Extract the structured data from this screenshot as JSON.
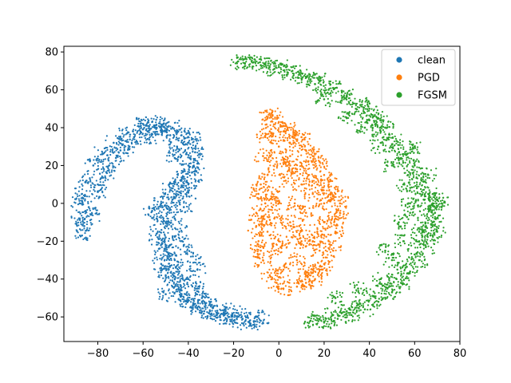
{
  "chart_data": {
    "type": "scatter",
    "title": "",
    "xlabel": "",
    "ylabel": "",
    "xlim": [
      -95,
      80
    ],
    "ylim": [
      -73,
      83
    ],
    "xticks": [
      -80,
      -60,
      -40,
      -20,
      0,
      20,
      40,
      60,
      80
    ],
    "xtick_labels": [
      "−80",
      "−60",
      "−40",
      "−20",
      "0",
      "20",
      "40",
      "60",
      "80"
    ],
    "yticks": [
      -60,
      -40,
      -20,
      0,
      20,
      40,
      60,
      80
    ],
    "ytick_labels": [
      "−60",
      "−40",
      "−20",
      "0",
      "20",
      "40",
      "60",
      "80"
    ],
    "grid": false,
    "legend_position": "upper right",
    "series": [
      {
        "name": "clean",
        "color": "#1f77b4",
        "shape": "crescent",
        "points": [
          [
            -87,
            -17
          ],
          [
            -88,
            -8
          ],
          [
            -88,
            0
          ],
          [
            -87,
            5
          ],
          [
            -85,
            12
          ],
          [
            -82,
            20
          ],
          [
            -78,
            26
          ],
          [
            -73,
            32
          ],
          [
            -67,
            37
          ],
          [
            -61,
            41
          ],
          [
            -56,
            43
          ],
          [
            -51,
            42
          ],
          [
            -47,
            40
          ],
          [
            -43,
            36
          ],
          [
            -40,
            32
          ],
          [
            -37,
            27
          ],
          [
            -36,
            21
          ],
          [
            -37,
            15
          ],
          [
            -40,
            10
          ],
          [
            -44,
            6
          ],
          [
            -47,
            2
          ],
          [
            -49,
            -3
          ],
          [
            -50,
            -10
          ],
          [
            -50,
            -18
          ],
          [
            -49,
            -26
          ],
          [
            -48,
            -33
          ],
          [
            -46,
            -40
          ],
          [
            -43,
            -46
          ],
          [
            -40,
            -51
          ],
          [
            -36,
            -55
          ],
          [
            -31,
            -58
          ],
          [
            -26,
            -60
          ],
          [
            -20,
            -62
          ],
          [
            -13,
            -63
          ],
          [
            -8,
            -62
          ],
          [
            -84,
            -2
          ],
          [
            -80,
            10
          ],
          [
            -75,
            20
          ],
          [
            -70,
            28
          ],
          [
            -64,
            35
          ],
          [
            -58,
            38
          ],
          [
            -52,
            38
          ],
          [
            -48,
            36
          ],
          [
            -45,
            30
          ],
          [
            -41,
            26
          ],
          [
            -40,
            20
          ],
          [
            -42,
            14
          ],
          [
            -45,
            10
          ],
          [
            -48,
            7
          ],
          [
            -52,
            0
          ],
          [
            -54,
            -8
          ],
          [
            -54,
            -16
          ],
          [
            -53,
            -24
          ],
          [
            -52,
            -32
          ],
          [
            -50,
            -38
          ],
          [
            -47,
            -44
          ],
          [
            -43,
            -49
          ],
          [
            -38,
            -54
          ],
          [
            -33,
            -57
          ],
          [
            -27,
            -58
          ],
          [
            -22,
            -60
          ],
          [
            -16,
            -61
          ],
          [
            -34,
            -50
          ],
          [
            -36,
            -45
          ],
          [
            -40,
            -40
          ],
          [
            -36,
            -35
          ],
          [
            -38,
            -28
          ],
          [
            -42,
            -22
          ],
          [
            -44,
            -15
          ],
          [
            -46,
            -8
          ],
          [
            -42,
            -2
          ],
          [
            -46,
            -30
          ],
          [
            -44,
            -36
          ],
          [
            -58,
            34
          ],
          [
            -66,
            30
          ],
          [
            -72,
            24
          ],
          [
            -76,
            16
          ],
          [
            -80,
            6
          ],
          [
            -83,
            -6
          ],
          [
            -86,
            -12
          ],
          [
            -60,
            42
          ],
          [
            -54,
            40
          ],
          [
            -46,
            24
          ],
          [
            -38,
            34
          ],
          [
            -40,
            6
          ],
          [
            -50,
            -48
          ],
          [
            -30,
            -52
          ],
          [
            -24,
            -56
          ],
          [
            -18,
            -58
          ],
          [
            -10,
            -60
          ],
          [
            -56,
            -4
          ],
          [
            -48,
            -22
          ]
        ]
      },
      {
        "name": "PGD",
        "color": "#ff7f0e",
        "shape": "ellipse",
        "points": [
          [
            -10,
            -12
          ],
          [
            -8,
            10
          ],
          [
            -7,
            25
          ],
          [
            -6,
            35
          ],
          [
            -5,
            45
          ],
          [
            -3,
            48
          ],
          [
            0,
            43
          ],
          [
            3,
            38
          ],
          [
            6,
            35
          ],
          [
            8,
            33
          ],
          [
            12,
            28
          ],
          [
            15,
            25
          ],
          [
            18,
            22
          ],
          [
            20,
            15
          ],
          [
            22,
            10
          ],
          [
            25,
            5
          ],
          [
            27,
            0
          ],
          [
            27,
            -5
          ],
          [
            25,
            -15
          ],
          [
            24,
            -25
          ],
          [
            20,
            -32
          ],
          [
            18,
            -35
          ],
          [
            16,
            -40
          ],
          [
            12,
            -42
          ],
          [
            8,
            -44
          ],
          [
            2,
            -45
          ],
          [
            -1,
            -42
          ],
          [
            -4,
            -38
          ],
          [
            -7,
            -30
          ],
          [
            -9,
            -20
          ],
          [
            -10,
            -5
          ],
          [
            -9,
            5
          ],
          [
            0,
            0
          ],
          [
            5,
            -10
          ],
          [
            10,
            10
          ],
          [
            15,
            -20
          ],
          [
            -5,
            15
          ],
          [
            5,
            20
          ],
          [
            12,
            -5
          ],
          [
            20,
            -10
          ],
          [
            -2,
            -25
          ],
          [
            8,
            -30
          ],
          [
            15,
            5
          ],
          [
            0,
            30
          ],
          [
            -5,
            -15
          ],
          [
            10,
            -20
          ],
          [
            18,
            -25
          ],
          [
            3,
            12
          ],
          [
            -3,
            5
          ],
          [
            22,
            -20
          ],
          [
            7,
            0
          ],
          [
            13,
            15
          ],
          [
            -6,
            0
          ],
          [
            2,
            -35
          ],
          [
            10,
            35
          ],
          [
            17,
            -15
          ],
          [
            -8,
            -25
          ],
          [
            5,
            25
          ],
          [
            20,
            0
          ],
          [
            -2,
            -8
          ],
          [
            12,
            -38
          ],
          [
            8,
            18
          ],
          [
            0,
            -20
          ],
          [
            15,
            -35
          ],
          [
            -4,
            38
          ],
          [
            -7,
            -8
          ],
          [
            25,
            -8
          ],
          [
            23,
            5
          ],
          [
            6,
            -18
          ],
          [
            13,
            22
          ],
          [
            -1,
            22
          ],
          [
            9,
            -12
          ],
          [
            17,
            10
          ],
          [
            4,
            40
          ]
        ]
      },
      {
        "name": "FGSM",
        "color": "#2ca02c",
        "shape": "crescent",
        "points": [
          [
            -18,
            75
          ],
          [
            -12,
            75
          ],
          [
            -6,
            74
          ],
          [
            0,
            72
          ],
          [
            6,
            70
          ],
          [
            12,
            67
          ],
          [
            18,
            65
          ],
          [
            24,
            61
          ],
          [
            30,
            57
          ],
          [
            36,
            52
          ],
          [
            42,
            46
          ],
          [
            47,
            40
          ],
          [
            52,
            33
          ],
          [
            56,
            26
          ],
          [
            60,
            20
          ],
          [
            63,
            12
          ],
          [
            66,
            5
          ],
          [
            68,
            0
          ],
          [
            69,
            -5
          ],
          [
            68,
            -10
          ],
          [
            67,
            -17
          ],
          [
            65,
            -23
          ],
          [
            62,
            -30
          ],
          [
            58,
            -36
          ],
          [
            54,
            -42
          ],
          [
            50,
            -47
          ],
          [
            44,
            -52
          ],
          [
            38,
            -56
          ],
          [
            32,
            -59
          ],
          [
            26,
            -61
          ],
          [
            20,
            -63
          ],
          [
            14,
            -62
          ],
          [
            -15,
            74
          ],
          [
            -8,
            73
          ],
          [
            -2,
            71
          ],
          [
            4,
            69
          ],
          [
            10,
            66
          ],
          [
            16,
            63
          ],
          [
            22,
            60
          ],
          [
            28,
            56
          ],
          [
            34,
            50
          ],
          [
            40,
            44
          ],
          [
            45,
            38
          ],
          [
            50,
            31
          ],
          [
            54,
            24
          ],
          [
            58,
            16
          ],
          [
            61,
            8
          ],
          [
            64,
            2
          ],
          [
            66,
            -3
          ],
          [
            65,
            -12
          ],
          [
            62,
            -20
          ],
          [
            60,
            -27
          ],
          [
            56,
            -34
          ],
          [
            52,
            -40
          ],
          [
            48,
            -45
          ],
          [
            42,
            -49
          ],
          [
            36,
            -53
          ],
          [
            30,
            -57
          ],
          [
            24,
            -59
          ],
          [
            18,
            -61
          ],
          [
            40,
            50
          ],
          [
            46,
            44
          ],
          [
            55,
            10
          ],
          [
            58,
            -5
          ],
          [
            62,
            -15
          ],
          [
            70,
            2
          ],
          [
            72,
            0
          ],
          [
            58,
            0
          ],
          [
            55,
            -20
          ],
          [
            50,
            -30
          ],
          [
            45,
            -40
          ],
          [
            35,
            -45
          ],
          [
            25,
            -50
          ],
          [
            44,
            30
          ],
          [
            50,
            20
          ],
          [
            60,
            30
          ],
          [
            38,
            40
          ],
          [
            30,
            45
          ],
          [
            20,
            55
          ],
          [
            70,
            -15
          ],
          [
            66,
            15
          ],
          [
            53,
            -10
          ],
          [
            47,
            -25
          ]
        ]
      }
    ]
  }
}
